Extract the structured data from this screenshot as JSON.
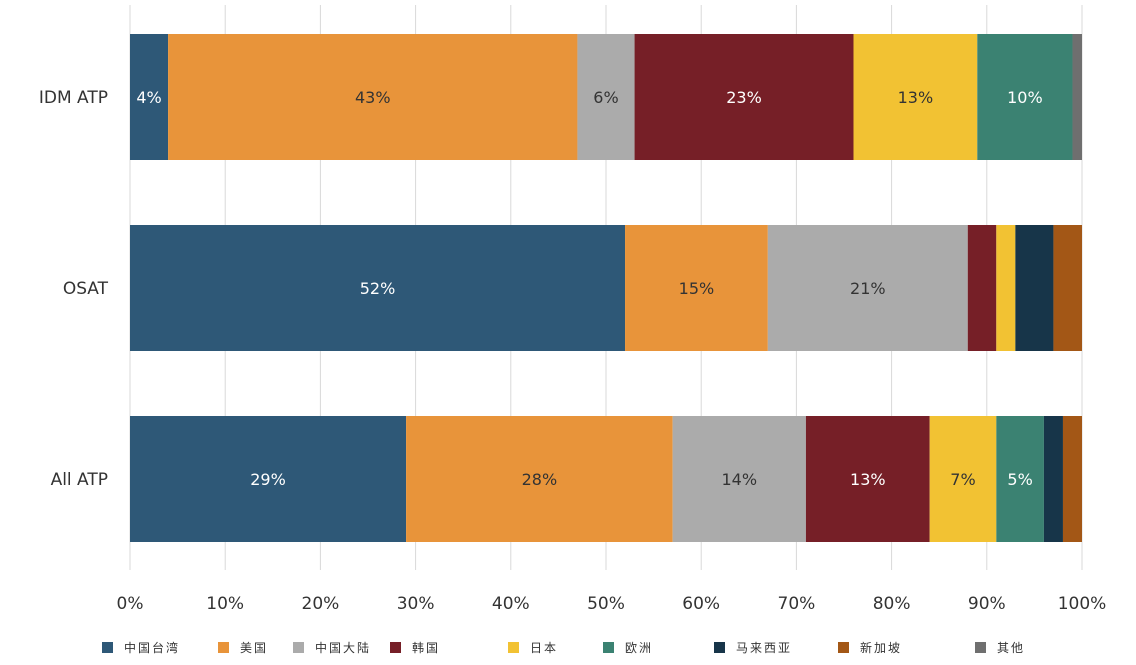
{
  "chart_data": {
    "type": "bar",
    "orientation": "horizontal",
    "stacked": true,
    "normalized": true,
    "categories": [
      "IDM ATP",
      "OSAT",
      "All ATP"
    ],
    "series": [
      {
        "name": "中国台湾",
        "color": "#2E5877",
        "values": [
          4,
          52,
          29
        ],
        "labels": [
          "4%",
          "52%",
          "29%"
        ]
      },
      {
        "name": "美国",
        "color": "#E8943A",
        "values": [
          43,
          15,
          28
        ],
        "labels": [
          "43%",
          "15%",
          "28%"
        ]
      },
      {
        "name": "中国大陆",
        "color": "#ABABAB",
        "values": [
          6,
          21,
          14
        ],
        "labels": [
          "6%",
          "21%",
          "14%"
        ]
      },
      {
        "name": "韩国",
        "color": "#761F27",
        "values": [
          23,
          3,
          13
        ],
        "labels": [
          "23%",
          "",
          "13%"
        ]
      },
      {
        "name": "日本",
        "color": "#F2C233",
        "values": [
          13,
          2,
          7
        ],
        "labels": [
          "13%",
          "",
          "7%"
        ]
      },
      {
        "name": "欧洲",
        "color": "#3B8272",
        "values": [
          10,
          0,
          5
        ],
        "labels": [
          "10%",
          "",
          "5%"
        ]
      },
      {
        "name": "马来西亚",
        "color": "#173549",
        "values": [
          0,
          4,
          2
        ],
        "labels": [
          "",
          "",
          ""
        ]
      },
      {
        "name": "新加坡",
        "color": "#A35716",
        "values": [
          0,
          3,
          2
        ],
        "labels": [
          "",
          "",
          ""
        ]
      },
      {
        "name": "其他",
        "color": "#6F6F6F",
        "values": [
          1,
          0,
          0
        ],
        "labels": [
          "",
          "",
          ""
        ]
      }
    ],
    "x_ticks": [
      "0%",
      "10%",
      "20%",
      "30%",
      "40%",
      "50%",
      "60%",
      "70%",
      "80%",
      "90%",
      "100%"
    ],
    "xlim": [
      0,
      100
    ],
    "grid": true,
    "legend_position": "bottom",
    "title": "",
    "xlabel": "",
    "ylabel": ""
  }
}
